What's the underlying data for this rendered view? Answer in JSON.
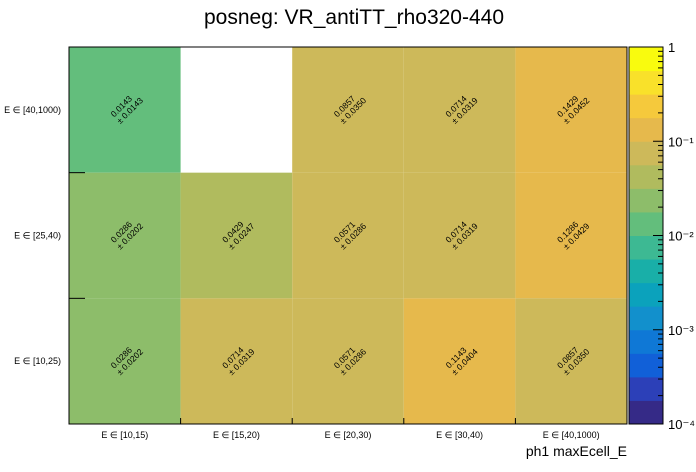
{
  "chart_data": {
    "type": "heatmap",
    "title": "posneg: VR_antiTT_rho320-440",
    "xlabel": "ph1 maxEcell_E",
    "ylabel": "",
    "x_categories": [
      "E ∈ [10,15)",
      "E ∈ [15,20)",
      "E ∈ [20,30)",
      "E ∈ [30,40)",
      "E ∈ [40,1000)"
    ],
    "y_categories": [
      "E ∈ [10,25)",
      "E ∈ [25,40)",
      "E ∈ [40,1000)"
    ],
    "cells": [
      {
        "x": 0,
        "y": 2,
        "value": "0.0143",
        "error": "± 0.0143"
      },
      {
        "x": 2,
        "y": 2,
        "value": "0.0857",
        "error": "± 0.0350"
      },
      {
        "x": 3,
        "y": 2,
        "value": "0.0714",
        "error": "± 0.0319"
      },
      {
        "x": 4,
        "y": 2,
        "value": "0.1429",
        "error": "± 0.0452"
      },
      {
        "x": 0,
        "y": 1,
        "value": "0.0286",
        "error": "± 0.0202"
      },
      {
        "x": 1,
        "y": 1,
        "value": "0.0429",
        "error": "± 0.0247"
      },
      {
        "x": 2,
        "y": 1,
        "value": "0.0571",
        "error": "± 0.0286"
      },
      {
        "x": 3,
        "y": 1,
        "value": "0.0714",
        "error": "± 0.0319"
      },
      {
        "x": 4,
        "y": 1,
        "value": "0.1286",
        "error": "± 0.0429"
      },
      {
        "x": 0,
        "y": 0,
        "value": "0.0286",
        "error": "± 0.0202"
      },
      {
        "x": 1,
        "y": 0,
        "value": "0.0714",
        "error": "± 0.0319"
      },
      {
        "x": 2,
        "y": 0,
        "value": "0.0571",
        "error": "± 0.0286"
      },
      {
        "x": 3,
        "y": 0,
        "value": "0.1143",
        "error": "± 0.0404"
      },
      {
        "x": 4,
        "y": 0,
        "value": "0.0857",
        "error": "± 0.0350"
      }
    ],
    "colorbar": {
      "scale": "log",
      "zlim": [
        0.0001,
        1
      ],
      "major_ticks": [
        {
          "value": 1,
          "label": "1"
        },
        {
          "value": 0.1,
          "label": "10⁻¹"
        },
        {
          "value": 0.01,
          "label": "10⁻²"
        },
        {
          "value": 0.001,
          "label": "10⁻³"
        },
        {
          "value": 0.0001,
          "label": "10⁻⁴"
        }
      ],
      "palette": [
        "#352a87",
        "#2c40b8",
        "#1160d8",
        "#0f78d6",
        "#1290cc",
        "#0ba2bc",
        "#19afa8",
        "#3db993",
        "#63be7c",
        "#8dbd6a",
        "#b0bb5e",
        "#cdb95a",
        "#e6b94c",
        "#f5c93c",
        "#f9e12a",
        "#f9fb0e"
      ]
    }
  }
}
